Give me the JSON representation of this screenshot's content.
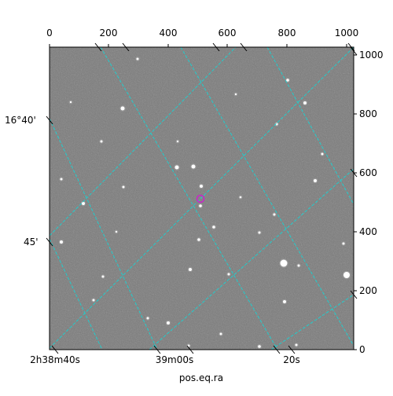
{
  "figure": {
    "xlabel": "pos.eq.ra",
    "top_ticks": [
      "0",
      "200",
      "400",
      "600",
      "800",
      "1000"
    ],
    "right_ticks": [
      "0",
      "200",
      "400",
      "600",
      "800",
      "1000"
    ],
    "bottom_ticks": [
      "2h38m40s",
      "39m00s",
      "20s"
    ],
    "left_ticks": [
      "16°40'",
      "45'"
    ],
    "colors": {
      "grid": "#22cccc",
      "marker": "#cc22cc",
      "image_background": "#7a7a7a"
    },
    "marker_icon": "circle-marker-icon"
  }
}
